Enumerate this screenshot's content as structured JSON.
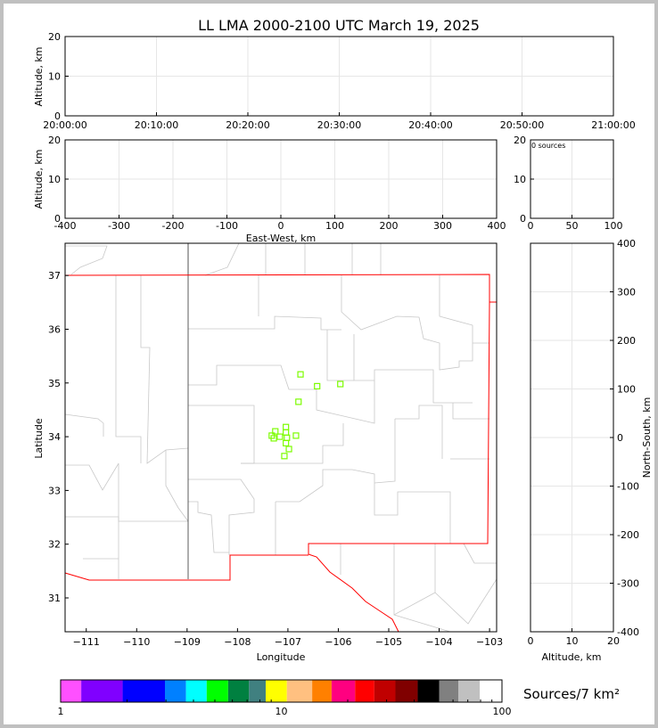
{
  "chart_data": [
    {
      "type": "scatter",
      "title": "LL LMA 2000-2100 UTC March 19, 2025",
      "panel": "time-altitude",
      "ylabel": "Altitude, km",
      "ylim": [
        0,
        20
      ],
      "yticks": [
        "0",
        "10",
        "20"
      ],
      "xticks": [
        "20:00:00",
        "20:10:00",
        "20:20:00",
        "20:30:00",
        "20:40:00",
        "20:50:00",
        "21:00:00"
      ],
      "grid": true,
      "points": []
    },
    {
      "type": "scatter",
      "panel": "east-west-altitude",
      "xlabel": "East-West, km",
      "ylabel": "Altitude, km",
      "xlim": [
        -400,
        400
      ],
      "ylim": [
        0,
        20
      ],
      "xticks": [
        "-400",
        "-300",
        "-200",
        "-100",
        "0",
        "100",
        "200",
        "300",
        "400"
      ],
      "yticks": [
        "0",
        "10",
        "20"
      ],
      "grid": true,
      "points": []
    },
    {
      "type": "bar",
      "panel": "altitude-histogram",
      "annotation": "0 sources",
      "xlim": [
        0,
        100
      ],
      "ylim": [
        0,
        20
      ],
      "xticks": [
        "0",
        "50",
        "100"
      ],
      "yticks": [
        "0",
        "10",
        "20"
      ],
      "grid": true,
      "values": []
    },
    {
      "type": "scatter",
      "panel": "plan-view",
      "xlabel": "Longitude",
      "ylabel": "Latitude",
      "xlim": [
        -111.42,
        -102.86
      ],
      "ylim": [
        30.37,
        37.6
      ],
      "xticks": [
        -111,
        -110,
        -109,
        -108,
        -107,
        -106,
        -105,
        -104,
        -103
      ],
      "yticks": [
        31,
        32,
        33,
        34,
        35,
        36,
        37
      ],
      "marker_color": "#7cfc00",
      "network_boundary_color": "#ff0000",
      "points": [
        {
          "lon": -106.75,
          "lat": 35.16
        },
        {
          "lon": -106.42,
          "lat": 34.94
        },
        {
          "lon": -105.96,
          "lat": 34.98
        },
        {
          "lon": -106.79,
          "lat": 34.65
        },
        {
          "lon": -107.04,
          "lat": 34.18
        },
        {
          "lon": -107.25,
          "lat": 34.1
        },
        {
          "lon": -107.04,
          "lat": 34.08
        },
        {
          "lon": -107.32,
          "lat": 34.02
        },
        {
          "lon": -107.16,
          "lat": 34.0
        },
        {
          "lon": -106.84,
          "lat": 34.02
        },
        {
          "lon": -107.02,
          "lat": 33.98
        },
        {
          "lon": -107.28,
          "lat": 33.97
        },
        {
          "lon": -107.04,
          "lat": 33.88
        },
        {
          "lon": -106.98,
          "lat": 33.77
        },
        {
          "lon": -107.07,
          "lat": 33.64
        }
      ]
    },
    {
      "type": "scatter",
      "panel": "altitude-north-south",
      "xlabel": "Altitude, km",
      "ylabel": "North-South, km",
      "xlim": [
        0,
        20
      ],
      "ylim": [
        -400,
        400
      ],
      "xticks": [
        "0",
        "10",
        "20"
      ],
      "yticks": [
        "400",
        "300",
        "200",
        "100",
        "0",
        "-100",
        "-200",
        "-300",
        "-400"
      ],
      "grid": true,
      "points": []
    }
  ],
  "colorbar": {
    "label": "Sources/7 km²",
    "scale": "log",
    "ticks": [
      "1",
      "10",
      "100"
    ],
    "bounds": [
      1,
      1.24,
      1.91,
      2.97,
      3.7,
      4.59,
      5.74,
      7.14,
      8.5,
      10.6,
      13.8,
      16.9,
      21.6,
      26.4,
      32.9,
      41.5,
      51.9,
      63.4,
      79.4,
      100
    ],
    "colors": [
      "#ff50ff",
      "#8000ff",
      "#0000ff",
      "#0080ff",
      "#00ffff",
      "#00ff00",
      "#008040",
      "#408080",
      "#ffff00",
      "#ffc080",
      "#ff8000",
      "#ff0080",
      "#ff0000",
      "#c00000",
      "#800000",
      "#000000",
      "#808080",
      "#c0c0c0",
      "#ffffff"
    ]
  }
}
